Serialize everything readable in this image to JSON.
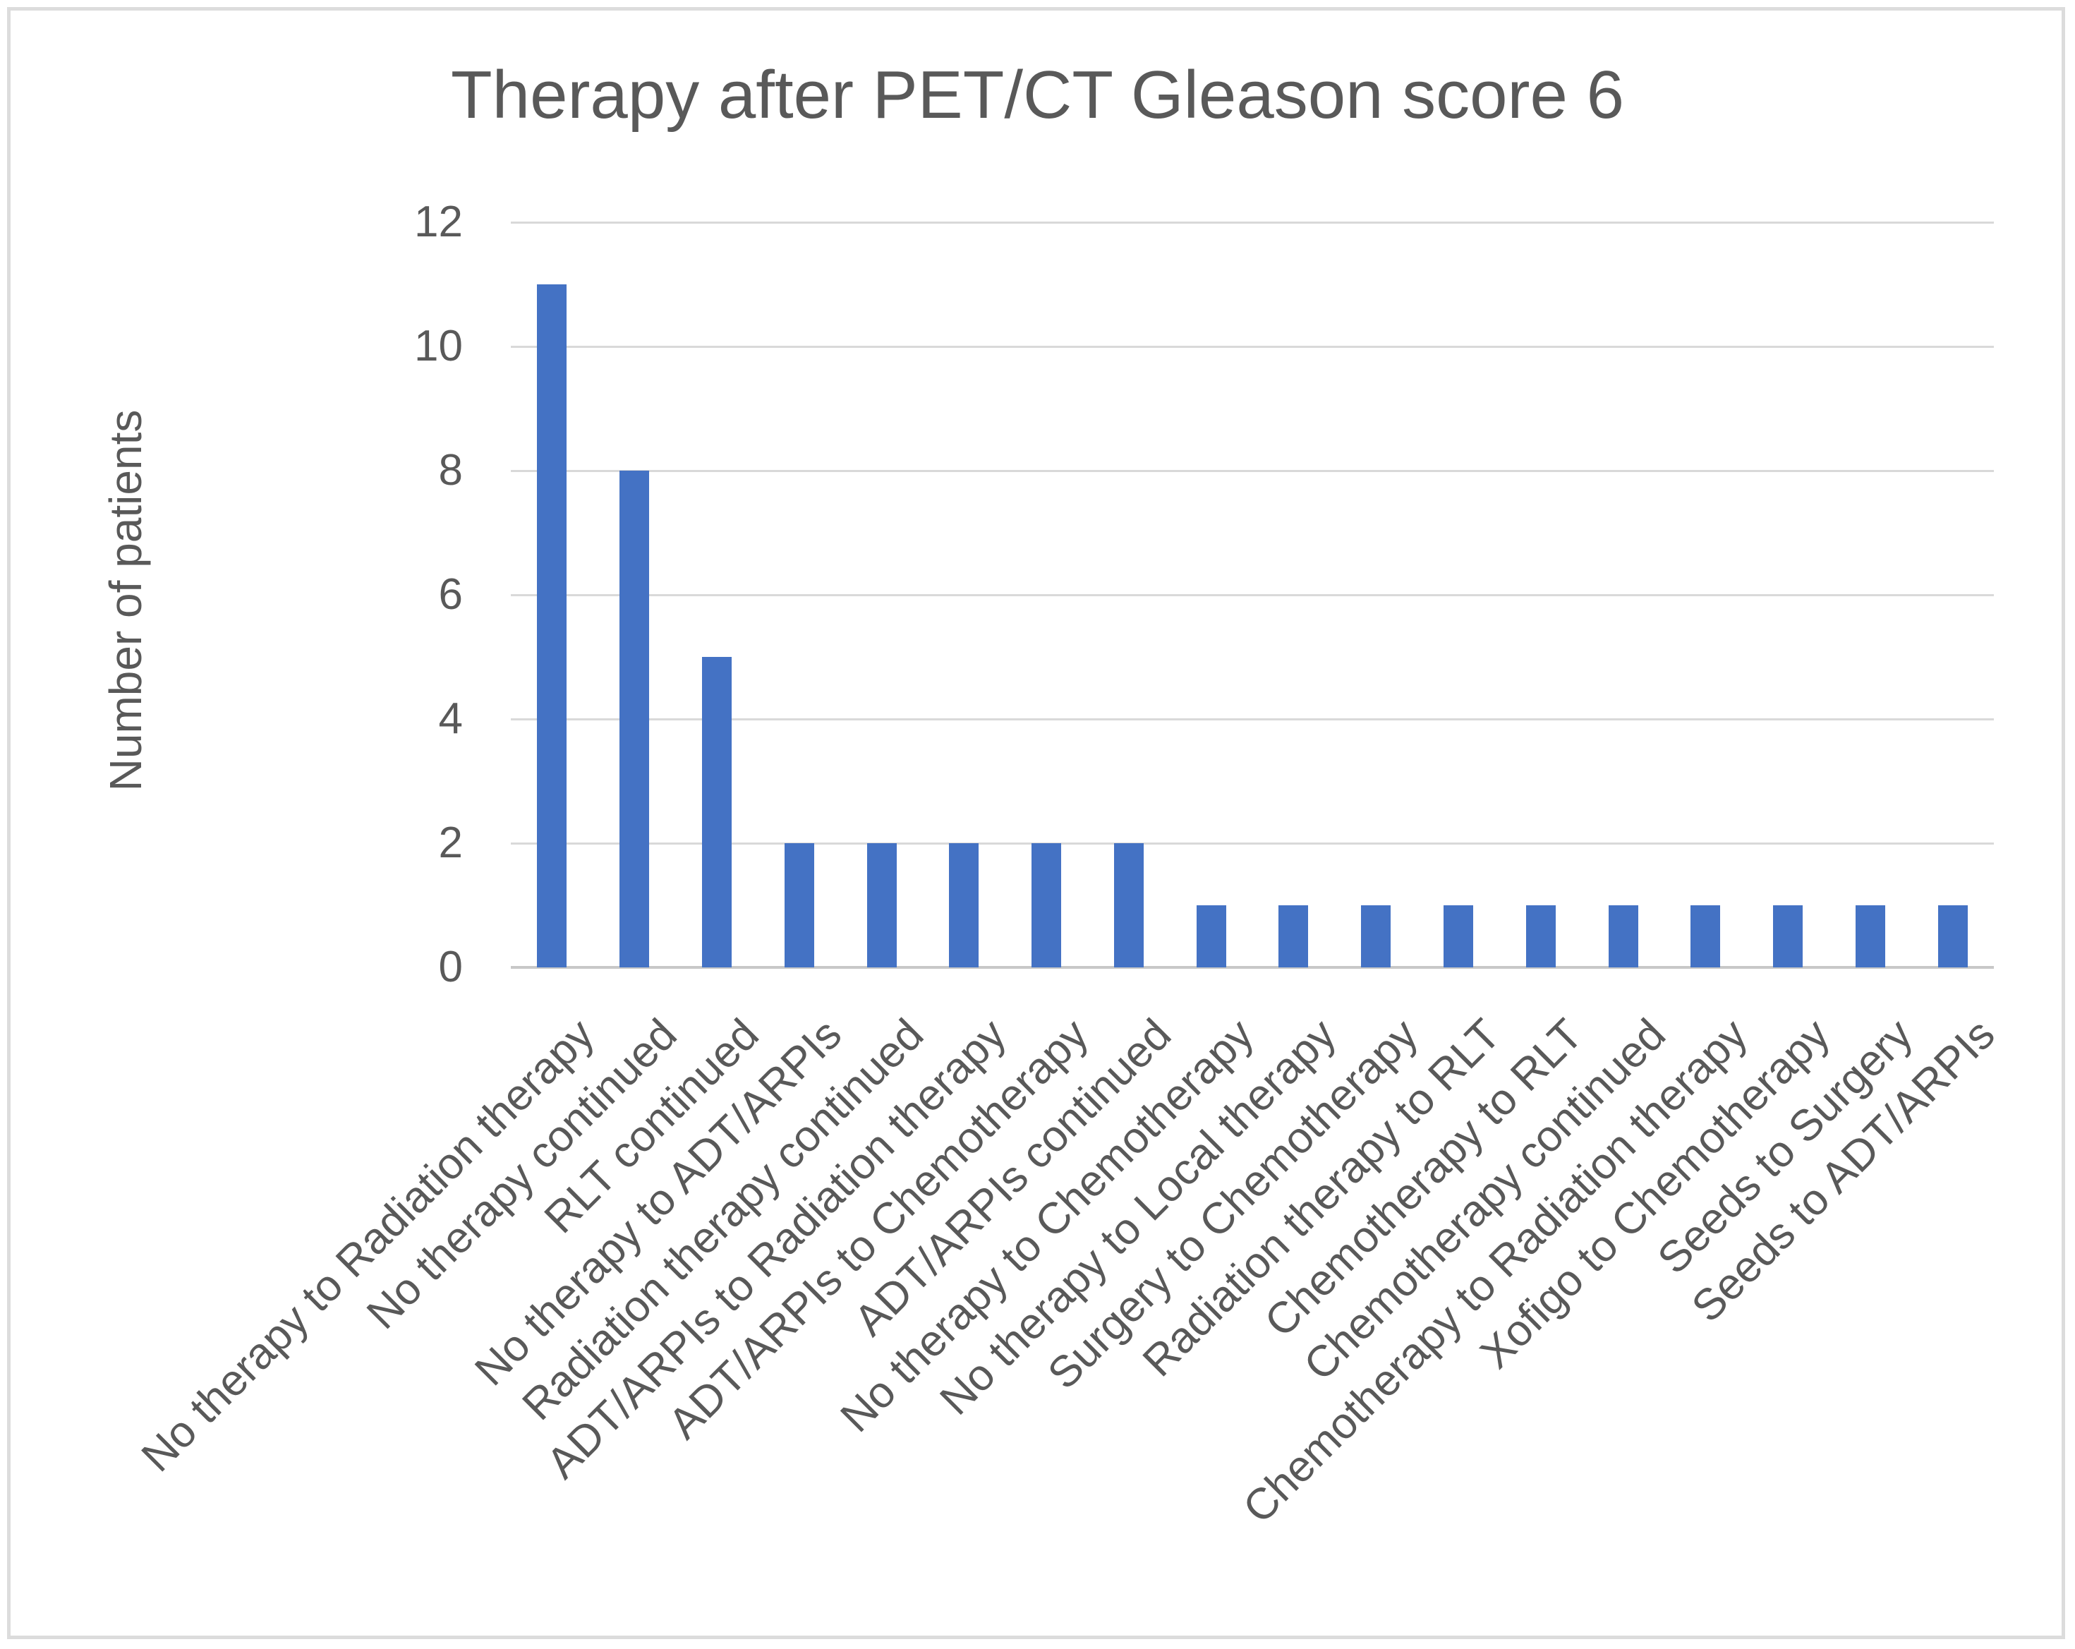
{
  "chart_data": {
    "type": "bar",
    "title": "Therapy after PET/CT Gleason score 6",
    "xlabel": "",
    "ylabel": "Number of patients",
    "categories": [
      "No therapy to Radiation therapy",
      "No therapy continued",
      "RLT continued",
      "No therapy to ADT/ARPIs",
      "Radiation therapy continued",
      "ADT/ARPIs to Radiation therapy",
      "ADT/ARPIs to Chemotherapy",
      "ADT/ARPIs continued",
      "No therapy to Chemotherapy",
      "No therapy to Local therapy",
      "Surgery to Chemotherapy",
      "Radiation therapy to RLT",
      "Chemotherapy to RLT",
      "Chemotherapy continued",
      "Chemotherapy to Radiation therapy",
      "Xofigo to Chemotherapy",
      "Seeds to Surgery",
      "Seeds to ADT/ARPIs"
    ],
    "values": [
      11,
      8,
      5,
      2,
      2,
      2,
      2,
      2,
      1,
      1,
      1,
      1,
      1,
      1,
      1,
      1,
      1,
      1
    ],
    "yticks": [
      0,
      2,
      4,
      6,
      8,
      10,
      12
    ],
    "ylim": [
      0,
      12
    ],
    "grid": "horizontal",
    "legend_position": "none",
    "x_label_rotation_degrees": 45,
    "colors": {
      "bar": "#4472C4",
      "gridline": "#D9D9D9",
      "axis_line": "#C8C8C8",
      "text": "#595959",
      "border": "#DCDCDC",
      "background": "#FFFFFF"
    }
  }
}
